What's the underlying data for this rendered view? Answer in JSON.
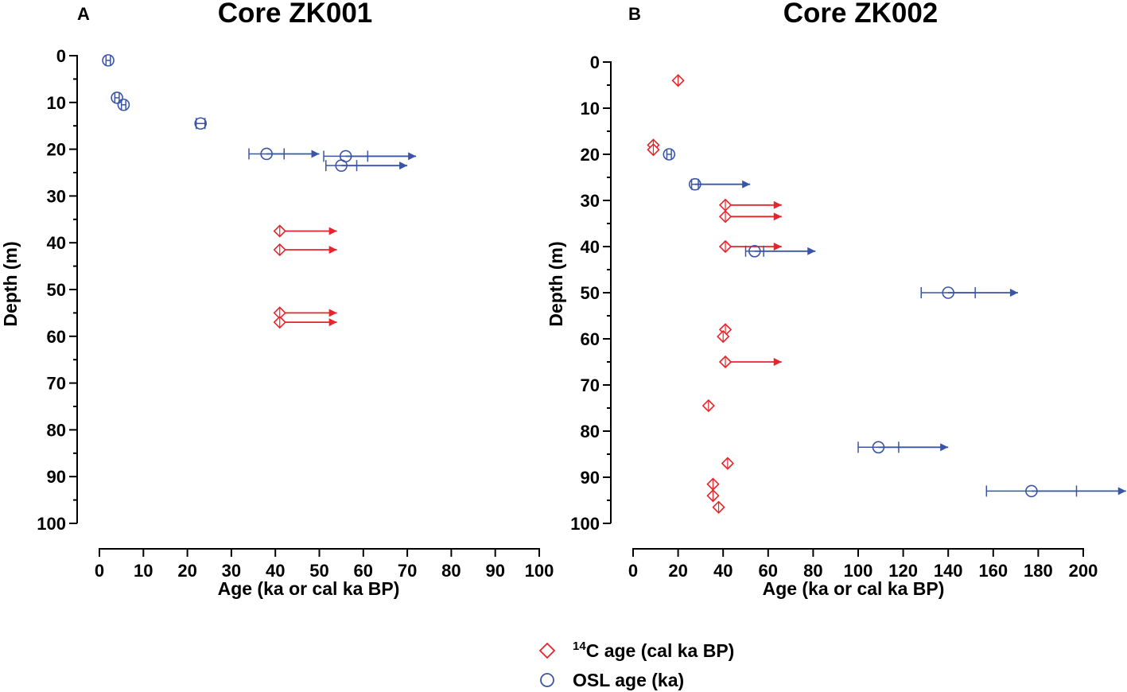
{
  "colors": {
    "c14": "#e8242a",
    "osl": "#3a55a8",
    "axis": "#000000"
  },
  "legend": {
    "items": [
      {
        "key": "c14",
        "marker": "diamond",
        "sup": "14",
        "text": "C age (cal ka BP)"
      },
      {
        "key": "osl",
        "marker": "circle",
        "sup": "",
        "text": "OSL age (ka)"
      }
    ]
  },
  "chart_data": [
    {
      "panel": "A",
      "type": "scatter",
      "title": "Core ZK001",
      "xlabel": "Age (ka or cal ka BP)",
      "ylabel": "Depth (m)",
      "xlim": [
        0,
        100
      ],
      "ylim": [
        0,
        100
      ],
      "y_inverted": true,
      "xticks": [
        0,
        10,
        20,
        30,
        40,
        50,
        60,
        70,
        80,
        90,
        100
      ],
      "yticks": [
        0,
        10,
        20,
        30,
        40,
        50,
        60,
        70,
        80,
        90,
        100
      ],
      "series": [
        {
          "name": "14C age (cal ka BP)",
          "key": "c14",
          "marker": "diamond",
          "points": [
            {
              "age": 41,
              "depth": 37.5,
              "arrow_to": 54
            },
            {
              "age": 41,
              "depth": 41.5,
              "arrow_to": 54
            },
            {
              "age": 41,
              "depth": 55,
              "arrow_to": 54
            },
            {
              "age": 41,
              "depth": 57,
              "arrow_to": 54
            }
          ]
        },
        {
          "name": "OSL age (ka)",
          "key": "osl",
          "marker": "circle",
          "points": [
            {
              "age": 2,
              "depth": 1,
              "err": 0.5
            },
            {
              "age": 4,
              "depth": 9,
              "err": 0.5
            },
            {
              "age": 5.5,
              "depth": 10.5,
              "err": 0.5
            },
            {
              "age": 23,
              "depth": 14.5,
              "err": 1
            },
            {
              "age": 38,
              "depth": 21,
              "err": 4,
              "arrow_to": 50
            },
            {
              "age": 56,
              "depth": 21.5,
              "err": 5,
              "arrow_to": 72
            },
            {
              "age": 55,
              "depth": 23.5,
              "err": 3.5,
              "arrow_to": 70
            }
          ]
        }
      ]
    },
    {
      "panel": "B",
      "type": "scatter",
      "title": "Core ZK002",
      "xlabel": "Age (ka or cal ka BP)",
      "ylabel": "Depth (m)",
      "xlim": [
        0,
        200
      ],
      "ylim": [
        0,
        100
      ],
      "y_inverted": true,
      "xticks": [
        0,
        20,
        40,
        60,
        80,
        100,
        120,
        140,
        160,
        180,
        200
      ],
      "yticks": [
        0,
        10,
        20,
        30,
        40,
        50,
        60,
        70,
        80,
        90,
        100
      ],
      "series": [
        {
          "name": "14C age (cal ka BP)",
          "key": "c14",
          "marker": "diamond",
          "points": [
            {
              "age": 20,
              "depth": 4
            },
            {
              "age": 9,
              "depth": 18
            },
            {
              "age": 9,
              "depth": 19
            },
            {
              "age": 41,
              "depth": 31,
              "arrow_to": 66
            },
            {
              "age": 41,
              "depth": 33.5,
              "arrow_to": 66
            },
            {
              "age": 41,
              "depth": 40,
              "arrow_to": 66
            },
            {
              "age": 41,
              "depth": 58
            },
            {
              "age": 40,
              "depth": 59.5
            },
            {
              "age": 41,
              "depth": 65,
              "arrow_to": 66
            },
            {
              "age": 33.5,
              "depth": 74.5
            },
            {
              "age": 42,
              "depth": 87
            },
            {
              "age": 35.5,
              "depth": 91.5
            },
            {
              "age": 35.5,
              "depth": 94
            },
            {
              "age": 38,
              "depth": 96.5
            }
          ]
        },
        {
          "name": "OSL age (ka)",
          "key": "osl",
          "marker": "circle",
          "points": [
            {
              "age": 16,
              "depth": 20,
              "err": 1
            },
            {
              "age": 27.5,
              "depth": 26.5,
              "err": 1.5,
              "arrow_to": 52
            },
            {
              "age": 54,
              "depth": 41,
              "err": 4,
              "arrow_to": 81
            },
            {
              "age": 140,
              "depth": 50,
              "err": 12,
              "arrow_to": 171
            },
            {
              "age": 109,
              "depth": 83.5,
              "err": 9,
              "arrow_to": 140
            },
            {
              "age": 177,
              "depth": 93,
              "err": 20,
              "arrow_to": 219
            }
          ]
        }
      ]
    }
  ]
}
